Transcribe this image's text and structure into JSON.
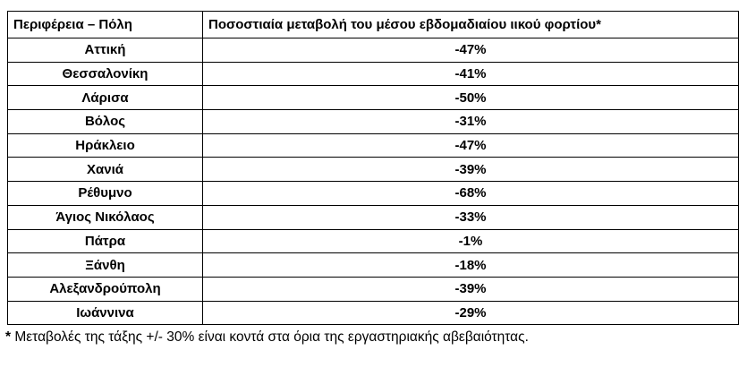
{
  "table": {
    "header": [
      "Περιφέρεια – Πόλη",
      "Ποσοστιαία μεταβολή του μέσου εβδομαδιαίου ιικού φορτίου*"
    ],
    "rows": [
      [
        "Αττική",
        "-47%"
      ],
      [
        "Θεσσαλονίκη",
        "-41%"
      ],
      [
        "Λάρισα",
        "-50%"
      ],
      [
        "Βόλος",
        "-31%"
      ],
      [
        "Ηράκλειο",
        "-47%"
      ],
      [
        "Χανιά",
        "-39%"
      ],
      [
        "Ρέθυμνο",
        "-68%"
      ],
      [
        "Άγιος Νικόλαος",
        "-33%"
      ],
      [
        "Πάτρα",
        "-1%"
      ],
      [
        "Ξάνθη",
        "-18%"
      ],
      [
        "Αλεξανδρούπολη",
        "-39%"
      ],
      [
        "Ιωάννινα",
        "-29%"
      ]
    ]
  },
  "footnote": {
    "marker": "*",
    "text": " Μεταβολές της τάξης +/- 30% είναι κοντά στα όρια της εργαστηριακής αβεβαιότητας."
  }
}
